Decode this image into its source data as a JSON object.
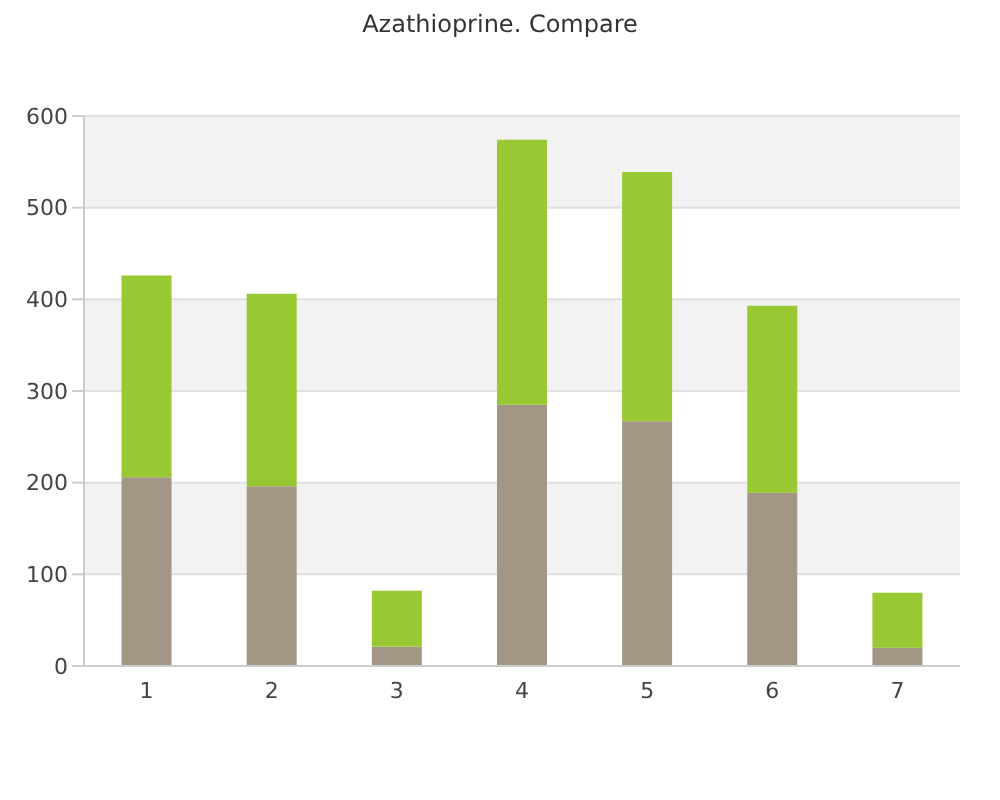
{
  "chart_data": {
    "type": "bar",
    "title": "Azathioprine. Compare",
    "stacked": true,
    "categories": [
      "1",
      "2",
      "3",
      "4",
      "5",
      "6",
      "7"
    ],
    "series": [
      {
        "color": "#a39684",
        "values": [
          206,
          196,
          21,
          285,
          267,
          189,
          20
        ]
      },
      {
        "color": "#98c832",
        "values": [
          220,
          210,
          61,
          289,
          272,
          204,
          60
        ]
      }
    ],
    "ylim": [
      0,
      600
    ],
    "yticks": [
      0,
      100,
      200,
      300,
      400,
      500,
      600
    ],
    "grid": "y"
  }
}
